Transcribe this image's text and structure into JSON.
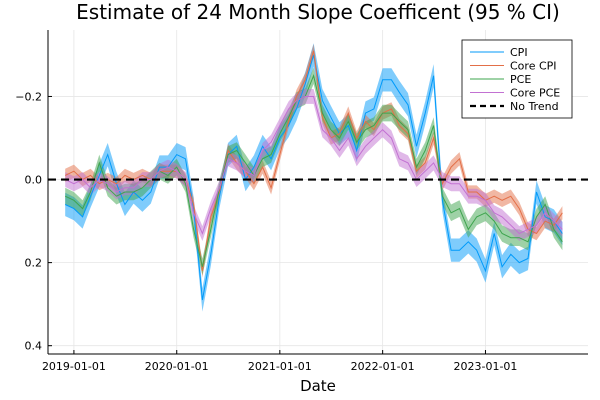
{
  "chart_data": {
    "type": "line",
    "title": "Estimate of 24 Month Slope Coefficent (95 % CI)",
    "xlabel": "Date",
    "ylabel": "",
    "y_axis_inverted": true,
    "ylim": [
      -0.36,
      0.42
    ],
    "xlim": [
      "2018-10-01",
      "2023-12-31"
    ],
    "x_ticks": [
      "2019-01-01",
      "2020-01-01",
      "2021-01-01",
      "2022-01-01",
      "2023-01-01"
    ],
    "y_ticks": [
      {
        "value": -0.2,
        "label": "−0.2"
      },
      {
        "value": 0.0,
        "label": "0.0"
      },
      {
        "value": 0.2,
        "label": "0.2"
      },
      {
        "value": 0.4,
        "label": "0.4"
      }
    ],
    "grid": true,
    "legend_position": "top-right",
    "x": [
      "2018-12-01",
      "2019-01-01",
      "2019-02-01",
      "2019-03-01",
      "2019-04-01",
      "2019-05-01",
      "2019-06-01",
      "2019-07-01",
      "2019-08-01",
      "2019-09-01",
      "2019-10-01",
      "2019-11-01",
      "2019-12-01",
      "2020-01-01",
      "2020-02-01",
      "2020-03-01",
      "2020-04-01",
      "2020-05-01",
      "2020-06-01",
      "2020-07-01",
      "2020-08-01",
      "2020-09-01",
      "2020-10-01",
      "2020-11-01",
      "2020-12-01",
      "2021-01-01",
      "2021-02-01",
      "2021-03-01",
      "2021-04-01",
      "2021-05-01",
      "2021-06-01",
      "2021-07-01",
      "2021-08-01",
      "2021-09-01",
      "2021-10-01",
      "2021-11-01",
      "2021-12-01",
      "2022-01-01",
      "2022-02-01",
      "2022-03-01",
      "2022-04-01",
      "2022-05-01",
      "2022-06-01",
      "2022-07-01",
      "2022-08-01",
      "2022-09-01",
      "2022-10-01",
      "2022-11-01",
      "2022-12-01",
      "2023-01-01",
      "2023-02-01",
      "2023-03-01",
      "2023-04-01",
      "2023-05-01",
      "2023-06-01",
      "2023-07-01",
      "2023-08-01",
      "2023-09-01",
      "2023-10-01"
    ],
    "series": [
      {
        "name": "CPI",
        "color": "#009AFA",
        "values": [
          0.06,
          0.07,
          0.09,
          0.04,
          -0.01,
          -0.06,
          0.01,
          0.06,
          0.03,
          0.05,
          0.03,
          -0.03,
          -0.03,
          -0.06,
          -0.05,
          0.07,
          0.29,
          0.18,
          0.04,
          -0.06,
          -0.08,
          0.0,
          -0.03,
          -0.08,
          -0.05,
          -0.1,
          -0.13,
          -0.17,
          -0.23,
          -0.3,
          -0.19,
          -0.15,
          -0.11,
          -0.13,
          -0.07,
          -0.16,
          -0.17,
          -0.24,
          -0.24,
          -0.21,
          -0.18,
          -0.08,
          -0.16,
          -0.25,
          0.05,
          0.17,
          0.17,
          0.15,
          0.17,
          0.22,
          0.13,
          0.21,
          0.18,
          0.2,
          0.19,
          0.03,
          0.09,
          0.1,
          0.13
        ],
        "half_width": 0.028
      },
      {
        "name": "Core CPI",
        "color": "#E36F47",
        "values": [
          -0.01,
          -0.02,
          0.0,
          -0.01,
          0.01,
          0.0,
          0.01,
          -0.01,
          0.0,
          -0.01,
          0.0,
          -0.02,
          -0.02,
          -0.02,
          0.0,
          0.06,
          0.22,
          0.09,
          0.03,
          -0.07,
          -0.04,
          -0.02,
          0.01,
          -0.03,
          0.02,
          -0.06,
          -0.14,
          -0.2,
          -0.24,
          -0.31,
          -0.15,
          -0.1,
          -0.11,
          -0.16,
          -0.1,
          -0.14,
          -0.12,
          -0.16,
          -0.17,
          -0.13,
          -0.11,
          -0.02,
          -0.04,
          -0.1,
          0.01,
          -0.03,
          -0.05,
          0.03,
          0.03,
          0.05,
          0.04,
          0.05,
          0.04,
          0.07,
          0.12,
          0.13,
          0.1,
          0.11,
          0.08
        ],
        "half_width": 0.016
      },
      {
        "name": "PCE",
        "color": "#3EA44E",
        "values": [
          0.04,
          0.05,
          0.07,
          0.03,
          -0.04,
          0.02,
          0.04,
          0.03,
          0.03,
          0.02,
          0.0,
          -0.02,
          -0.01,
          -0.03,
          0.01,
          0.12,
          0.21,
          0.12,
          0.02,
          -0.06,
          -0.07,
          -0.04,
          -0.01,
          -0.05,
          -0.06,
          -0.11,
          -0.15,
          -0.19,
          -0.2,
          -0.25,
          -0.16,
          -0.12,
          -0.1,
          -0.14,
          -0.09,
          -0.12,
          -0.13,
          -0.16,
          -0.16,
          -0.14,
          -0.12,
          -0.03,
          -0.07,
          -0.13,
          0.04,
          0.08,
          0.07,
          0.12,
          0.09,
          0.08,
          0.1,
          0.13,
          0.14,
          0.14,
          0.15,
          0.09,
          0.06,
          0.12,
          0.15
        ],
        "half_width": 0.02
      },
      {
        "name": "Core PCE",
        "color": "#C271D2",
        "values": [
          0.0,
          0.01,
          0.0,
          0.02,
          0.0,
          0.01,
          0.03,
          0.02,
          0.02,
          0.0,
          0.0,
          -0.02,
          -0.03,
          -0.02,
          0.0,
          0.08,
          0.13,
          0.07,
          0.02,
          -0.05,
          -0.04,
          -0.02,
          -0.01,
          -0.07,
          -0.09,
          -0.13,
          -0.17,
          -0.19,
          -0.2,
          -0.2,
          -0.12,
          -0.1,
          -0.07,
          -0.1,
          -0.05,
          -0.08,
          -0.1,
          -0.12,
          -0.1,
          -0.05,
          -0.04,
          0.0,
          -0.02,
          -0.04,
          0.0,
          0.01,
          0.01,
          0.04,
          0.04,
          0.05,
          0.08,
          0.09,
          0.11,
          0.13,
          0.12,
          0.11,
          0.08,
          0.1,
          0.12
        ],
        "half_width": 0.018
      },
      {
        "name": "No Trend",
        "color": "#000000",
        "dashed": true,
        "constant": 0.0
      }
    ]
  }
}
